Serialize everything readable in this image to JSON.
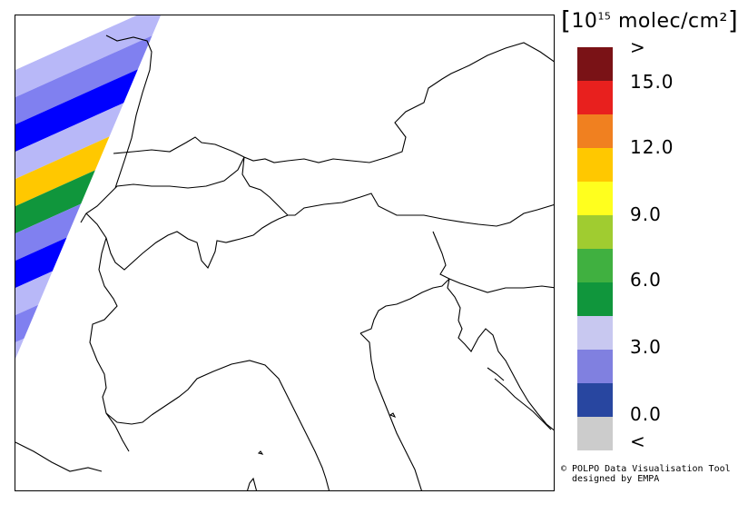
{
  "legend": {
    "title_prefix": "[10",
    "title_exponent": "15",
    "title_unit": "molec/cm²",
    "title_suffix": "]",
    "colors": [
      "#7a1216",
      "#e8201e",
      "#f08020",
      "#ffc800",
      "#ffff1e",
      "#a0cc30",
      "#40b040",
      "#10963c",
      "#c8c8f0",
      "#8080e0",
      "#2846a0",
      "#cccccc"
    ],
    "ticks": [
      ">",
      "15.0",
      "12.0",
      "9.0",
      "6.0",
      "3.0",
      "0.0",
      "<"
    ]
  },
  "credit": {
    "line1": "© POLPO Data Visualisation Tool",
    "line2": "designed by EMPA"
  },
  "swath": {
    "bands": [
      "#b8b8f8",
      "#8080f0",
      "#0000ff",
      "#b8b8f8",
      "#ffc800",
      "#10963c",
      "#8080f0",
      "#0000ff",
      "#b8b8f8",
      "#8080f0",
      "#b8b8f8",
      "#8080f0",
      "#0000ff"
    ]
  }
}
